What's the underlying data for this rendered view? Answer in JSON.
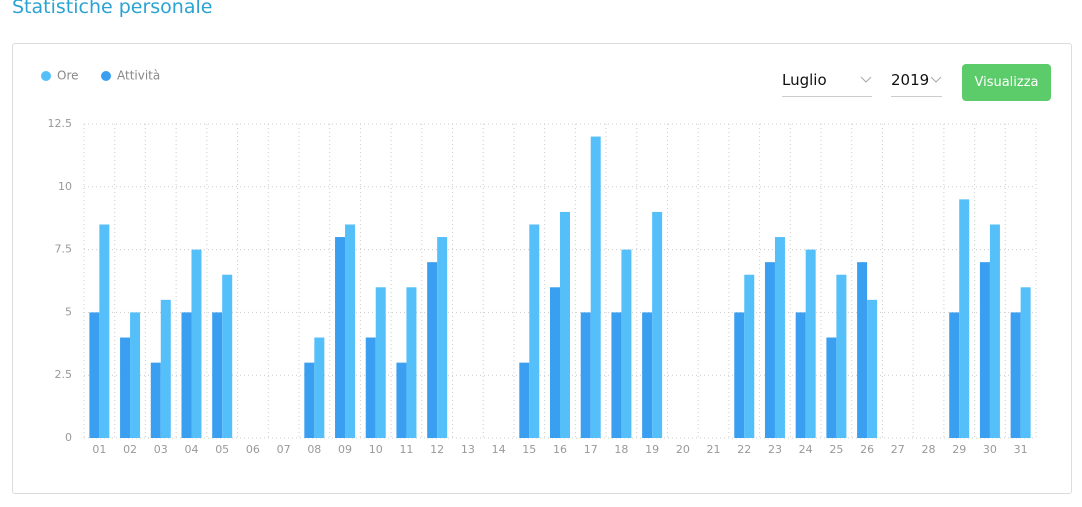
{
  "page_title": "Statistiche personale",
  "controls": {
    "month": "Luglio",
    "year": "2019",
    "button": "Visualizza"
  },
  "chart_data": {
    "type": "bar",
    "categories": [
      "01",
      "02",
      "03",
      "04",
      "05",
      "06",
      "07",
      "08",
      "09",
      "10",
      "11",
      "12",
      "13",
      "14",
      "15",
      "16",
      "17",
      "18",
      "19",
      "20",
      "21",
      "22",
      "23",
      "24",
      "25",
      "26",
      "27",
      "28",
      "29",
      "30",
      "31"
    ],
    "series": [
      {
        "name": "Ore",
        "color": "#55bffa",
        "values": [
          8.5,
          5,
          5.5,
          7.5,
          6.5,
          0,
          0,
          4,
          8.5,
          6,
          6,
          8,
          0,
          0,
          8.5,
          9,
          12,
          7.5,
          9,
          0,
          0,
          6.5,
          8,
          7.5,
          6.5,
          5.5,
          0,
          0,
          9.5,
          8.5,
          6
        ]
      },
      {
        "name": "Attività",
        "color": "#3a9ff0",
        "values": [
          5,
          4,
          3,
          5,
          5,
          0,
          0,
          3,
          8,
          4,
          3,
          7,
          0,
          0,
          3,
          6,
          5,
          5,
          5,
          0,
          0,
          5,
          7,
          5,
          4,
          7,
          0,
          0,
          5,
          7,
          5
        ]
      }
    ],
    "ylim": [
      0,
      12.5
    ],
    "yticks": [
      0,
      2.5,
      5,
      7.5,
      10,
      12.5
    ],
    "grid": true,
    "legend": "top-left"
  }
}
